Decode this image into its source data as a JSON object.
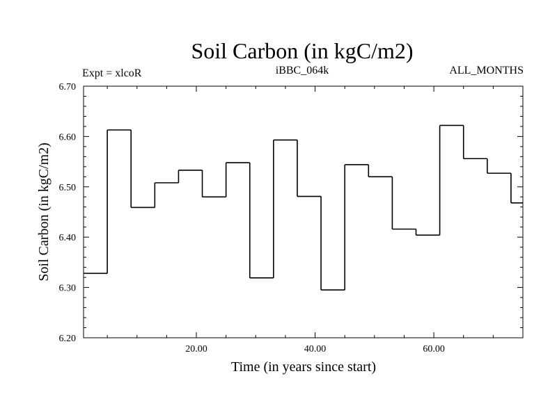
{
  "chart_data": {
    "type": "line",
    "line_style": "step",
    "title": "Soil Carbon (in kgC/m2)",
    "annotations": {
      "left": "Expt = xlcoR",
      "center": "iBBC_064k",
      "right": "ALL_MONTHS"
    },
    "xlabel": "Time (in years since start)",
    "ylabel": "Soil Carbon (in kgC/m2)",
    "xlim": [
      1,
      75
    ],
    "ylim": [
      6.2,
      6.7
    ],
    "x_ticks": [
      {
        "value": 20,
        "label": "20.00"
      },
      {
        "value": 40,
        "label": "40.00"
      },
      {
        "value": 60,
        "label": "60.00"
      }
    ],
    "y_ticks": [
      {
        "value": 6.2,
        "label": "6.20"
      },
      {
        "value": 6.3,
        "label": "6.30"
      },
      {
        "value": 6.4,
        "label": "6.40"
      },
      {
        "value": 6.5,
        "label": "6.50"
      },
      {
        "value": 6.6,
        "label": "6.60"
      },
      {
        "value": 6.7,
        "label": "6.70"
      }
    ],
    "grid": false,
    "series": [
      {
        "color": "#000000",
        "steps": [
          {
            "x_start": 1,
            "x_end": 5,
            "y": 6.328
          },
          {
            "x_start": 5,
            "x_end": 9,
            "y": 6.613
          },
          {
            "x_start": 9,
            "x_end": 13,
            "y": 6.459
          },
          {
            "x_start": 13,
            "x_end": 17,
            "y": 6.508
          },
          {
            "x_start": 17,
            "x_end": 21,
            "y": 6.533
          },
          {
            "x_start": 21,
            "x_end": 25,
            "y": 6.48
          },
          {
            "x_start": 25,
            "x_end": 29,
            "y": 6.548
          },
          {
            "x_start": 29,
            "x_end": 33,
            "y": 6.319
          },
          {
            "x_start": 33,
            "x_end": 37,
            "y": 6.593
          },
          {
            "x_start": 37,
            "x_end": 41,
            "y": 6.481
          },
          {
            "x_start": 41,
            "x_end": 45,
            "y": 6.295
          },
          {
            "x_start": 45,
            "x_end": 49,
            "y": 6.544
          },
          {
            "x_start": 49,
            "x_end": 53,
            "y": 6.52
          },
          {
            "x_start": 53,
            "x_end": 57,
            "y": 6.416
          },
          {
            "x_start": 57,
            "x_end": 61,
            "y": 6.404
          },
          {
            "x_start": 61,
            "x_end": 65,
            "y": 6.622
          },
          {
            "x_start": 65,
            "x_end": 69,
            "y": 6.556
          },
          {
            "x_start": 69,
            "x_end": 73,
            "y": 6.527
          },
          {
            "x_start": 73,
            "x_end": 75,
            "y": 6.468
          }
        ]
      }
    ]
  }
}
